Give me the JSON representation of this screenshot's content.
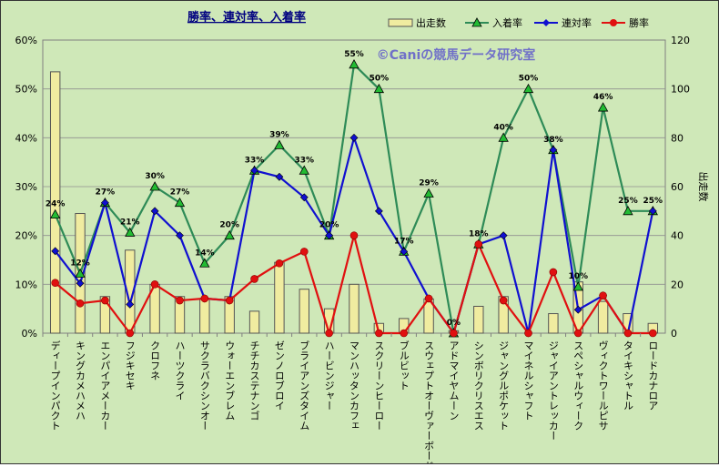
{
  "chart_data": {
    "type": "bar",
    "title": "勝率、連対率、入着率",
    "watermark": "©Caniの競馬データ研究室",
    "categories": [
      "ディープインパクト",
      "キングカメハメハ",
      "エンパイアメーカー",
      "フジキセキ",
      "クロフネ",
      "ハーツクライ",
      "サクラバクシンオー",
      "ウォーエンブレム",
      "チチカステナンゴ",
      "ゼンノロブロイ",
      "ブライアンズタイム",
      "ハービンジャー",
      "マンハッタンカフェ",
      "スクリーンヒーロー",
      "ブルビット",
      "スウェプトオーヴァーボード",
      "アドマイヤムーン",
      "シンボリクリスエス",
      "ジャングルポケット",
      "マイネルシャフト",
      "ジャイアントレッカー",
      "スペシャルウィーク",
      "ヴィクトワールピサ",
      "タイキシャトル",
      "ロードカナロア"
    ],
    "left_axis": {
      "min": 0,
      "max": 60,
      "step": 10,
      "ticks": [
        "0%",
        "10%",
        "20%",
        "30%",
        "40%",
        "50%",
        "60%"
      ]
    },
    "right_axis": {
      "label": "出走数",
      "min": 0,
      "max": 120,
      "step": 20,
      "ticks": [
        "0",
        "20",
        "40",
        "60",
        "80",
        "100",
        "120"
      ]
    },
    "legend": {
      "position": "top-right"
    },
    "grid": true,
    "colors": {
      "background": "#cfe8b8",
      "bar_fill": "#f0eca0",
      "bar_stroke": "#555555",
      "place": "#2e8b57",
      "place_marker": "#22bb33",
      "rentai": "#1010d0",
      "win": "#e01010",
      "title": "#000080",
      "watermark": "#7070c8"
    },
    "series": [
      {
        "name": "出走数",
        "axis": "right",
        "kind": "bar",
        "values": [
          107,
          49,
          15,
          34,
          20,
          15,
          14,
          15,
          9,
          29,
          18,
          10,
          20,
          4,
          6,
          14,
          1,
          11,
          15,
          0,
          8,
          21,
          13,
          8,
          4
        ]
      },
      {
        "name": "入着率",
        "axis": "left",
        "kind": "line",
        "marker": "triangle",
        "values": [
          24.3,
          12.2,
          26.7,
          20.6,
          30.0,
          26.7,
          14.3,
          20.0,
          33.3,
          38.5,
          33.3,
          20.0,
          55.0,
          50.0,
          16.7,
          28.6,
          0,
          18.2,
          40.0,
          50.0,
          37.5,
          9.5,
          46.2,
          25.0,
          25.0
        ]
      },
      {
        "name": "連対率",
        "axis": "left",
        "kind": "line",
        "marker": "diamond",
        "values": [
          16.8,
          10.2,
          26.7,
          5.9,
          25.0,
          20.0,
          7.1,
          6.7,
          33.3,
          32.0,
          27.8,
          20.0,
          40.0,
          25.0,
          16.7,
          7.1,
          0,
          18.2,
          20.0,
          0,
          37.5,
          4.8,
          7.7,
          0,
          25.0
        ]
      },
      {
        "name": "勝率",
        "axis": "left",
        "kind": "line",
        "marker": "circle",
        "values": [
          10.3,
          6.1,
          6.7,
          0,
          10.0,
          6.7,
          7.1,
          6.7,
          11.1,
          14.3,
          16.7,
          0,
          20.0,
          0,
          0,
          7.1,
          0,
          18.2,
          6.7,
          0,
          12.5,
          0,
          7.7,
          0,
          0
        ]
      }
    ],
    "data_labels": [
      {
        "series": "入着率",
        "index": 0,
        "text": "24%"
      },
      {
        "series": "入着率",
        "index": 1,
        "text": "12%"
      },
      {
        "series": "入着率",
        "index": 2,
        "text": "27%"
      },
      {
        "series": "入着率",
        "index": 3,
        "text": "21%"
      },
      {
        "series": "入着率",
        "index": 4,
        "text": "30%"
      },
      {
        "series": "入着率",
        "index": 5,
        "text": "27%"
      },
      {
        "series": "入着率",
        "index": 6,
        "text": "14%"
      },
      {
        "series": "入着率",
        "index": 7,
        "text": "20%"
      },
      {
        "series": "入着率",
        "index": 8,
        "text": "33%"
      },
      {
        "series": "入着率",
        "index": 9,
        "text": "39%"
      },
      {
        "series": "入着率",
        "index": 10,
        "text": "33%"
      },
      {
        "series": "入着率",
        "index": 11,
        "text": "20%"
      },
      {
        "series": "入着率",
        "index": 12,
        "text": "55%"
      },
      {
        "series": "入着率",
        "index": 13,
        "text": "50%"
      },
      {
        "series": "入着率",
        "index": 14,
        "text": "17%"
      },
      {
        "series": "入着率",
        "index": 15,
        "text": "29%"
      },
      {
        "series": "入着率",
        "index": 16,
        "text": "0%"
      },
      {
        "series": "入着率",
        "index": 17,
        "text": "18%"
      },
      {
        "series": "入着率",
        "index": 18,
        "text": "40%"
      },
      {
        "series": "入着率",
        "index": 19,
        "text": "50%"
      },
      {
        "series": "入着率",
        "index": 20,
        "text": "38%"
      },
      {
        "series": "入着率",
        "index": 21,
        "text": "10%"
      },
      {
        "series": "入着率",
        "index": 22,
        "text": "46%"
      },
      {
        "series": "入着率",
        "index": 23,
        "text": "25%"
      },
      {
        "series": "入着率",
        "index": 24,
        "text": "25%"
      }
    ]
  }
}
